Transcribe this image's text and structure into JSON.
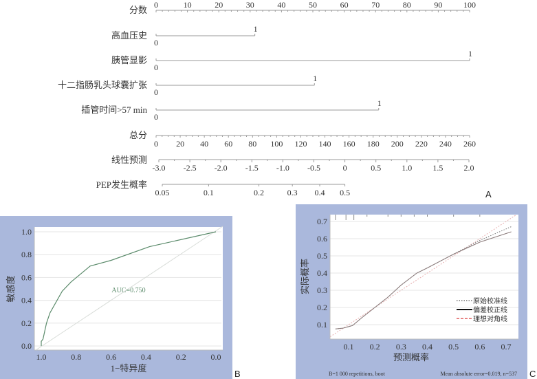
{
  "chart_data": [
    {
      "type": "nomogram",
      "panel_label": "A",
      "points_axis": {
        "label": "分数",
        "range": [
          0,
          100
        ],
        "ticks": [
          0,
          10,
          20,
          30,
          40,
          50,
          60,
          70,
          80,
          90,
          100
        ]
      },
      "variables": [
        {
          "label": "高血压史",
          "levels": [
            "0",
            "1"
          ],
          "points": [
            0,
            31.5
          ]
        },
        {
          "label": "胰管显影",
          "levels": [
            "0",
            "1"
          ],
          "points": [
            0,
            100
          ]
        },
        {
          "label": "十二指肠乳头球囊扩张",
          "levels": [
            "0",
            "1"
          ],
          "points": [
            0,
            50.5
          ]
        },
        {
          "label": "插管时间>57 min",
          "levels": [
            "0",
            "1"
          ],
          "points": [
            0,
            71
          ]
        }
      ],
      "total_points_axis": {
        "label": "总分",
        "range": [
          0,
          260
        ],
        "ticks": [
          0,
          20,
          40,
          60,
          80,
          100,
          120,
          140,
          160,
          180,
          200,
          220,
          240,
          260
        ]
      },
      "linear_predictor_axis": {
        "label": "线性预测",
        "range": [
          -3.0,
          2.0
        ],
        "ticks": [
          "-3.0",
          "-2.5",
          "-2.0",
          "-1.5",
          "-1.0",
          "-0.5",
          "0",
          "0.5",
          "1.0",
          "1.5",
          "2.0"
        ]
      },
      "probability_axis": {
        "label": "PEP发生概率",
        "ticks": [
          "0.05",
          "0.1",
          "0.2",
          "0.3",
          "0.4",
          "0.5"
        ]
      }
    },
    {
      "type": "line",
      "panel_label": "B",
      "xlabel": "1−特异度",
      "ylabel": "敏感度",
      "xlim": [
        1.0,
        0.0
      ],
      "ylim": [
        0.0,
        1.0
      ],
      "x_ticks": [
        "1.0",
        "0.8",
        "0.6",
        "0.4",
        "0.2",
        "0.0"
      ],
      "y_ticks": [
        "0.0",
        "0.2",
        "0.4",
        "0.6",
        "0.8",
        "1.0"
      ],
      "grid": true,
      "annotation": "AUC=0.750",
      "series": [
        {
          "x": [
            1.0,
            1.0,
            0.99,
            0.97,
            0.95,
            0.88,
            0.83,
            0.72,
            0.6,
            0.38,
            0.0
          ],
          "y": [
            0.0,
            0.04,
            0.06,
            0.2,
            0.29,
            0.48,
            0.56,
            0.7,
            0.75,
            0.87,
            1.0
          ],
          "color": "#5a8a6a"
        }
      ],
      "reference_line": {
        "x": [
          1.0,
          0.0
        ],
        "y": [
          0.0,
          1.0
        ],
        "color": "#d8dcd8"
      },
      "background_color": "#aab8dc"
    },
    {
      "type": "line",
      "panel_label": "C",
      "xlabel": "预测概率",
      "ylabel": "实际概率",
      "x_ticks": [
        "0.1",
        "0.2",
        "0.3",
        "0.4",
        "0.5",
        "0.6",
        "0.7"
      ],
      "y_ticks": [
        "0.1",
        "0.2",
        "0.3",
        "0.4",
        "0.5",
        "0.6",
        "0.7"
      ],
      "grid": true,
      "legend_position": "bottom-right",
      "series": [
        {
          "name": "原始校准线",
          "style": "dotted",
          "color": "#777777",
          "x": [
            0.05,
            0.08,
            0.115,
            0.15,
            0.2,
            0.25,
            0.3,
            0.36,
            0.4,
            0.5,
            0.6,
            0.72
          ],
          "y": [
            0.075,
            0.08,
            0.095,
            0.14,
            0.2,
            0.26,
            0.33,
            0.4,
            0.43,
            0.51,
            0.59,
            0.67
          ]
        },
        {
          "name": "偏差校正线",
          "style": "solid",
          "color": "#8a7a7a",
          "x": [
            0.05,
            0.08,
            0.115,
            0.15,
            0.2,
            0.25,
            0.3,
            0.36,
            0.4,
            0.5,
            0.6,
            0.72
          ],
          "y": [
            0.075,
            0.08,
            0.095,
            0.14,
            0.2,
            0.26,
            0.33,
            0.4,
            0.43,
            0.51,
            0.58,
            0.64
          ]
        },
        {
          "name": "理想对角线",
          "style": "dashed",
          "color": "#e05a5a",
          "x": [
            0.03,
            0.74
          ],
          "y": [
            0.03,
            0.74
          ]
        }
      ],
      "footer_left": "B=1 000 repetitions, boot",
      "footer_right": "Mean absolute error=0.019, n=537",
      "background_color": "#aab8dc"
    }
  ]
}
